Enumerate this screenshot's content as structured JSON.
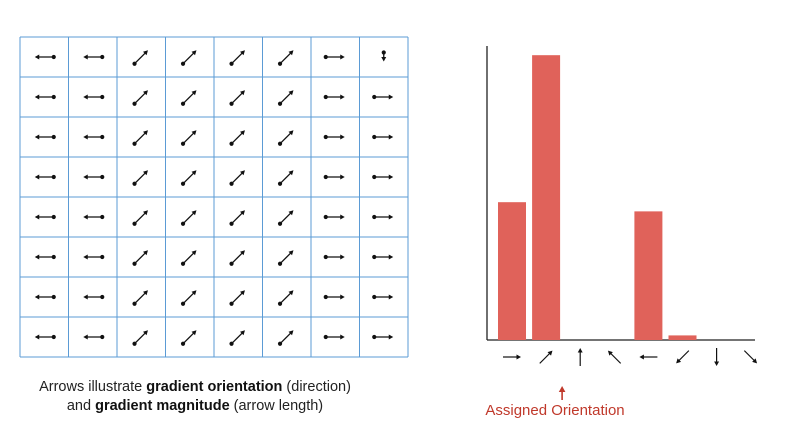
{
  "caption": {
    "line1_pre": "Arrows illustrate ",
    "line1_bold": "gradient orientation",
    "line1_post": " (direction)",
    "line2_pre": "and ",
    "line2_bold": "gradient magnitude",
    "line2_post": " (arrow length)"
  },
  "assigned_label": "Assigned Orientation",
  "colors": {
    "grid": "#5b9bd5",
    "bar": "#e0625a",
    "arrow": "#111111",
    "assigned": "#c0392b"
  },
  "grid": {
    "rows": 8,
    "columns": 8,
    "cell_orientations": [
      [
        "left",
        "left",
        "up-right",
        "up-right",
        "up-right",
        "up-right",
        "right",
        "down"
      ],
      [
        "left",
        "left",
        "up-right",
        "up-right",
        "up-right",
        "up-right",
        "right",
        "right"
      ],
      [
        "left",
        "left",
        "up-right",
        "up-right",
        "up-right",
        "up-right",
        "right",
        "right"
      ],
      [
        "left",
        "left",
        "up-right",
        "up-right",
        "up-right",
        "up-right",
        "right",
        "right"
      ],
      [
        "left",
        "left",
        "up-right",
        "up-right",
        "up-right",
        "up-right",
        "right",
        "right"
      ],
      [
        "left",
        "left",
        "up-right",
        "up-right",
        "up-right",
        "up-right",
        "right",
        "right"
      ],
      [
        "left",
        "left",
        "up-right",
        "up-right",
        "up-right",
        "up-right",
        "right",
        "right"
      ],
      [
        "left",
        "left",
        "up-right",
        "up-right",
        "up-right",
        "up-right",
        "right",
        "right"
      ]
    ]
  },
  "chart_data": {
    "type": "bar",
    "categories": [
      "right",
      "up-right",
      "up",
      "up-left",
      "left",
      "down-left",
      "down",
      "down-right"
    ],
    "values": [
      15,
      31,
      0,
      0,
      14,
      0.5,
      0,
      0
    ],
    "ylim": [
      0,
      32
    ],
    "xlabel": "",
    "ylabel": "",
    "title": "",
    "assigned_index": 1
  }
}
